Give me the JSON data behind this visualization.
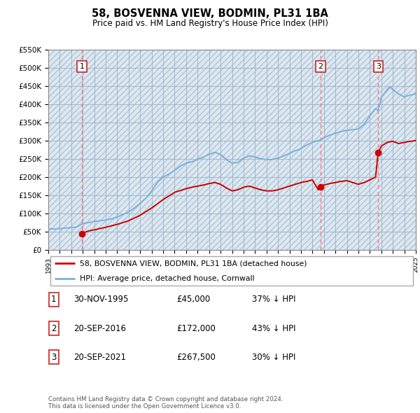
{
  "title": "58, BOSVENNA VIEW, BODMIN, PL31 1BA",
  "subtitle": "Price paid vs. HM Land Registry's House Price Index (HPI)",
  "ylim": [
    0,
    550000
  ],
  "yticks": [
    0,
    50000,
    100000,
    150000,
    200000,
    250000,
    300000,
    350000,
    400000,
    450000,
    500000,
    550000
  ],
  "ytick_labels": [
    "£0",
    "£50K",
    "£100K",
    "£150K",
    "£200K",
    "£250K",
    "£300K",
    "£350K",
    "£400K",
    "£450K",
    "£500K",
    "£550K"
  ],
  "hpi_color": "#7ab0dc",
  "price_color": "#cc0000",
  "vline_color": "#ff8888",
  "transactions": [
    {
      "date": 1995.92,
      "price": 45000,
      "label": "1"
    },
    {
      "date": 2016.72,
      "price": 172000,
      "label": "2"
    },
    {
      "date": 2021.72,
      "price": 267500,
      "label": "3"
    }
  ],
  "transaction_details": [
    {
      "num": "1",
      "date": "30-NOV-1995",
      "price": "£45,000",
      "hpi": "37% ↓ HPI"
    },
    {
      "num": "2",
      "date": "20-SEP-2016",
      "price": "£172,000",
      "hpi": "43% ↓ HPI"
    },
    {
      "num": "3",
      "date": "20-SEP-2021",
      "price": "£267,500",
      "hpi": "30% ↓ HPI"
    }
  ],
  "legend_label_price": "58, BOSVENNA VIEW, BODMIN, PL31 1BA (detached house)",
  "legend_label_hpi": "HPI: Average price, detached house, Cornwall",
  "footnote": "Contains HM Land Registry data © Crown copyright and database right 2024.\nThis data is licensed under the Open Government Licence v3.0.",
  "xmin": 1993,
  "xmax": 2025,
  "hpi_data": [
    [
      1993.0,
      58000
    ],
    [
      1993.5,
      57000
    ],
    [
      1994.0,
      58500
    ],
    [
      1994.5,
      60000
    ],
    [
      1995.0,
      61000
    ],
    [
      1995.5,
      63000
    ],
    [
      1995.92,
      71500
    ],
    [
      1996.0,
      72000
    ],
    [
      1996.5,
      75000
    ],
    [
      1997.0,
      78000
    ],
    [
      1997.5,
      80000
    ],
    [
      1998.0,
      82000
    ],
    [
      1998.5,
      85000
    ],
    [
      1999.0,
      90000
    ],
    [
      1999.5,
      97000
    ],
    [
      2000.0,
      104000
    ],
    [
      2000.5,
      115000
    ],
    [
      2001.0,
      128000
    ],
    [
      2001.5,
      142000
    ],
    [
      2002.0,
      162000
    ],
    [
      2002.5,
      185000
    ],
    [
      2003.0,
      200000
    ],
    [
      2003.5,
      208000
    ],
    [
      2004.0,
      218000
    ],
    [
      2004.5,
      230000
    ],
    [
      2005.0,
      238000
    ],
    [
      2005.5,
      242000
    ],
    [
      2006.0,
      248000
    ],
    [
      2006.5,
      255000
    ],
    [
      2007.0,
      262000
    ],
    [
      2007.5,
      268000
    ],
    [
      2008.0,
      262000
    ],
    [
      2008.5,
      248000
    ],
    [
      2009.0,
      238000
    ],
    [
      2009.5,
      240000
    ],
    [
      2010.0,
      252000
    ],
    [
      2010.5,
      258000
    ],
    [
      2011.0,
      255000
    ],
    [
      2011.5,
      250000
    ],
    [
      2012.0,
      248000
    ],
    [
      2012.5,
      248000
    ],
    [
      2013.0,
      252000
    ],
    [
      2013.5,
      258000
    ],
    [
      2014.0,
      265000
    ],
    [
      2014.5,
      272000
    ],
    [
      2015.0,
      278000
    ],
    [
      2015.5,
      288000
    ],
    [
      2016.0,
      295000
    ],
    [
      2016.5,
      300000
    ],
    [
      2016.72,
      302000
    ],
    [
      2017.0,
      308000
    ],
    [
      2017.5,
      315000
    ],
    [
      2018.0,
      320000
    ],
    [
      2018.5,
      325000
    ],
    [
      2019.0,
      328000
    ],
    [
      2019.5,
      330000
    ],
    [
      2020.0,
      332000
    ],
    [
      2020.5,
      345000
    ],
    [
      2021.0,
      368000
    ],
    [
      2021.5,
      388000
    ],
    [
      2021.72,
      382000
    ],
    [
      2022.0,
      418000
    ],
    [
      2022.5,
      440000
    ],
    [
      2022.75,
      448000
    ],
    [
      2023.0,
      440000
    ],
    [
      2023.5,
      428000
    ],
    [
      2024.0,
      420000
    ],
    [
      2024.5,
      425000
    ],
    [
      2025.0,
      428000
    ]
  ],
  "price_data": [
    [
      1995.92,
      45000
    ],
    [
      1996.5,
      52000
    ],
    [
      1997.0,
      55000
    ],
    [
      1998.0,
      62000
    ],
    [
      1999.0,
      70000
    ],
    [
      2000.0,
      80000
    ],
    [
      2001.0,
      95000
    ],
    [
      2002.0,
      115000
    ],
    [
      2003.0,
      138000
    ],
    [
      2004.0,
      158000
    ],
    [
      2005.0,
      168000
    ],
    [
      2005.5,
      172000
    ],
    [
      2006.0,
      175000
    ],
    [
      2006.5,
      178000
    ],
    [
      2007.0,
      182000
    ],
    [
      2007.5,
      185000
    ],
    [
      2008.0,
      180000
    ],
    [
      2008.5,
      170000
    ],
    [
      2009.0,
      162000
    ],
    [
      2009.5,
      165000
    ],
    [
      2010.0,
      172000
    ],
    [
      2010.5,
      175000
    ],
    [
      2011.0,
      170000
    ],
    [
      2011.5,
      165000
    ],
    [
      2012.0,
      162000
    ],
    [
      2012.5,
      162000
    ],
    [
      2013.0,
      165000
    ],
    [
      2013.5,
      170000
    ],
    [
      2014.0,
      175000
    ],
    [
      2014.5,
      180000
    ],
    [
      2015.0,
      185000
    ],
    [
      2015.5,
      188000
    ],
    [
      2016.0,
      192000
    ],
    [
      2016.5,
      165000
    ],
    [
      2016.72,
      172000
    ],
    [
      2017.0,
      178000
    ],
    [
      2017.5,
      182000
    ],
    [
      2018.0,
      185000
    ],
    [
      2018.5,
      188000
    ],
    [
      2019.0,
      190000
    ],
    [
      2019.5,
      185000
    ],
    [
      2020.0,
      180000
    ],
    [
      2020.5,
      185000
    ],
    [
      2021.0,
      192000
    ],
    [
      2021.5,
      200000
    ],
    [
      2021.72,
      267500
    ],
    [
      2022.0,
      285000
    ],
    [
      2022.5,
      295000
    ],
    [
      2023.0,
      298000
    ],
    [
      2023.5,
      292000
    ],
    [
      2024.0,
      295000
    ],
    [
      2024.5,
      298000
    ],
    [
      2025.0,
      300000
    ]
  ]
}
